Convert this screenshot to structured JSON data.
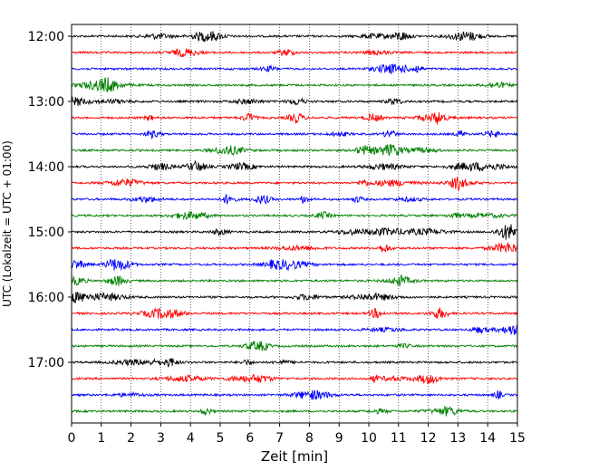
{
  "chart_data": {
    "type": "line",
    "title": "",
    "xlabel": "Zeit  [min]",
    "ylabel": "UTC (Lokalzeit = UTC + 01:00)",
    "xlim": [
      0,
      15
    ],
    "x_ticks": [
      0,
      1,
      2,
      3,
      4,
      5,
      6,
      7,
      8,
      9,
      10,
      11,
      12,
      13,
      14,
      15
    ],
    "x_tick_labels": [
      "0",
      "1",
      "2",
      "3",
      "4",
      "5",
      "6",
      "7",
      "8",
      "9",
      "10",
      "11",
      "12",
      "13",
      "14",
      "15"
    ],
    "y_tick_labels": [
      "12:00",
      "13:00",
      "14:00",
      "15:00",
      "16:00",
      "17:00"
    ],
    "grid": {
      "vertical_dotted": true
    },
    "colors": [
      "#000000",
      "#ff0000",
      "#0000ff",
      "#008000"
    ],
    "traces": [
      {
        "start": "12:00",
        "color": "#000000"
      },
      {
        "start": "12:15",
        "color": "#ff0000"
      },
      {
        "start": "12:30",
        "color": "#0000ff"
      },
      {
        "start": "12:45",
        "color": "#008000"
      },
      {
        "start": "13:00",
        "color": "#000000"
      },
      {
        "start": "13:15",
        "color": "#ff0000"
      },
      {
        "start": "13:30",
        "color": "#0000ff"
      },
      {
        "start": "13:45",
        "color": "#008000"
      },
      {
        "start": "14:00",
        "color": "#000000"
      },
      {
        "start": "14:15",
        "color": "#ff0000"
      },
      {
        "start": "14:30",
        "color": "#0000ff"
      },
      {
        "start": "14:45",
        "color": "#008000"
      },
      {
        "start": "15:00",
        "color": "#000000"
      },
      {
        "start": "15:15",
        "color": "#ff0000"
      },
      {
        "start": "15:30",
        "color": "#0000ff"
      },
      {
        "start": "15:45",
        "color": "#008000"
      },
      {
        "start": "16:00",
        "color": "#000000"
      },
      {
        "start": "16:15",
        "color": "#ff0000"
      },
      {
        "start": "16:30",
        "color": "#0000ff"
      },
      {
        "start": "16:45",
        "color": "#008000"
      },
      {
        "start": "17:00",
        "color": "#000000"
      },
      {
        "start": "17:15",
        "color": "#ff0000"
      },
      {
        "start": "17:30",
        "color": "#0000ff"
      },
      {
        "start": "17:45",
        "color": "#008000"
      }
    ]
  }
}
